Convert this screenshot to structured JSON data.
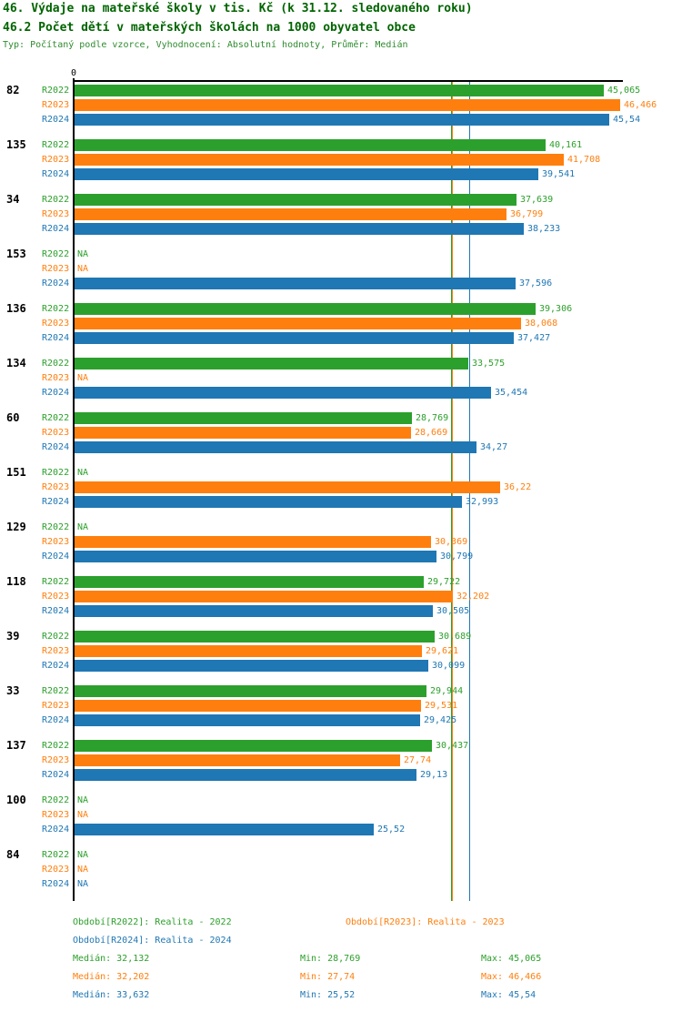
{
  "header": {
    "title": "46. Výdaje na mateřské školy v tis. Kč (k 31.12. sledovaného roku)",
    "subtitle": "46.2 Počet dětí v mateřských školách na 1000 obyvatel obce",
    "meta": "Typ: Počítaný podle vzorce, Vyhodnocení: Absolutní hodnoty, Průměr: Medián"
  },
  "colors": {
    "r2022": "#2ca02c",
    "r2023": "#ff7f0e",
    "r2024": "#1f77b4",
    "title_green": "#006400",
    "axis_black": "#000000"
  },
  "chart_data": {
    "type": "bar",
    "orientation": "horizontal",
    "value_axis": {
      "zero_label": "0",
      "min": 0,
      "max": 46.466
    },
    "series": [
      "R2022",
      "R2023",
      "R2024"
    ],
    "series_colors": [
      "#2ca02c",
      "#ff7f0e",
      "#1f77b4"
    ],
    "na_text": "NA",
    "groups": [
      {
        "category": "82",
        "values": [
          45.065,
          46.466,
          45.54
        ],
        "labels": [
          "45,065",
          "46,466",
          "45,54"
        ]
      },
      {
        "category": "135",
        "values": [
          40.161,
          41.708,
          39.541
        ],
        "labels": [
          "40,161",
          "41,708",
          "39,541"
        ]
      },
      {
        "category": "34",
        "values": [
          37.639,
          36.799,
          38.233
        ],
        "labels": [
          "37,639",
          "36,799",
          "38,233"
        ]
      },
      {
        "category": "153",
        "values": [
          null,
          null,
          37.596
        ],
        "labels": [
          null,
          null,
          "37,596"
        ]
      },
      {
        "category": "136",
        "values": [
          39.306,
          38.068,
          37.427
        ],
        "labels": [
          "39,306",
          "38,068",
          "37,427"
        ]
      },
      {
        "category": "134",
        "values": [
          33.575,
          null,
          35.454
        ],
        "labels": [
          "33,575",
          null,
          "35,454"
        ]
      },
      {
        "category": "60",
        "values": [
          28.769,
          28.669,
          34.27
        ],
        "labels": [
          "28,769",
          "28,669",
          "34,27"
        ]
      },
      {
        "category": "151",
        "values": [
          null,
          36.22,
          32.993
        ],
        "labels": [
          null,
          "36,22",
          "32,993"
        ]
      },
      {
        "category": "129",
        "values": [
          null,
          30.369,
          30.799
        ],
        "labels": [
          null,
          "30,369",
          "30,799"
        ]
      },
      {
        "category": "118",
        "values": [
          29.722,
          32.202,
          30.505
        ],
        "labels": [
          "29,722",
          "32,202",
          "30,505"
        ]
      },
      {
        "category": "39",
        "values": [
          30.689,
          29.621,
          30.099
        ],
        "labels": [
          "30,689",
          "29,621",
          "30,099"
        ]
      },
      {
        "category": "33",
        "values": [
          29.944,
          29.531,
          29.425
        ],
        "labels": [
          "29,944",
          "29,531",
          "29,425"
        ]
      },
      {
        "category": "137",
        "values": [
          30.437,
          27.74,
          29.13
        ],
        "labels": [
          "30,437",
          "27,74",
          "29,13"
        ]
      },
      {
        "category": "100",
        "values": [
          null,
          null,
          25.52
        ],
        "labels": [
          null,
          null,
          "25,52"
        ]
      },
      {
        "category": "84",
        "values": [
          null,
          null,
          null
        ],
        "labels": [
          null,
          null,
          null
        ]
      }
    ],
    "median_lines": [
      32.132,
      32.202,
      33.632
    ]
  },
  "legend": {
    "items": [
      {
        "label": "Období[R2022]: Realita - 2022"
      },
      {
        "label": "Období[R2023]: Realita - 2023"
      },
      {
        "label": "Období[R2024]: Realita - 2024"
      }
    ]
  },
  "stats": {
    "rows": [
      {
        "median": "Medián: 32,132",
        "min": "Min: 28,769",
        "max": "Max: 45,065"
      },
      {
        "median": "Medián: 32,202",
        "min": "Min: 27,74",
        "max": "Max: 46,466"
      },
      {
        "median": "Medián: 33,632",
        "min": "Min: 25,52",
        "max": "Max: 45,54"
      }
    ]
  }
}
